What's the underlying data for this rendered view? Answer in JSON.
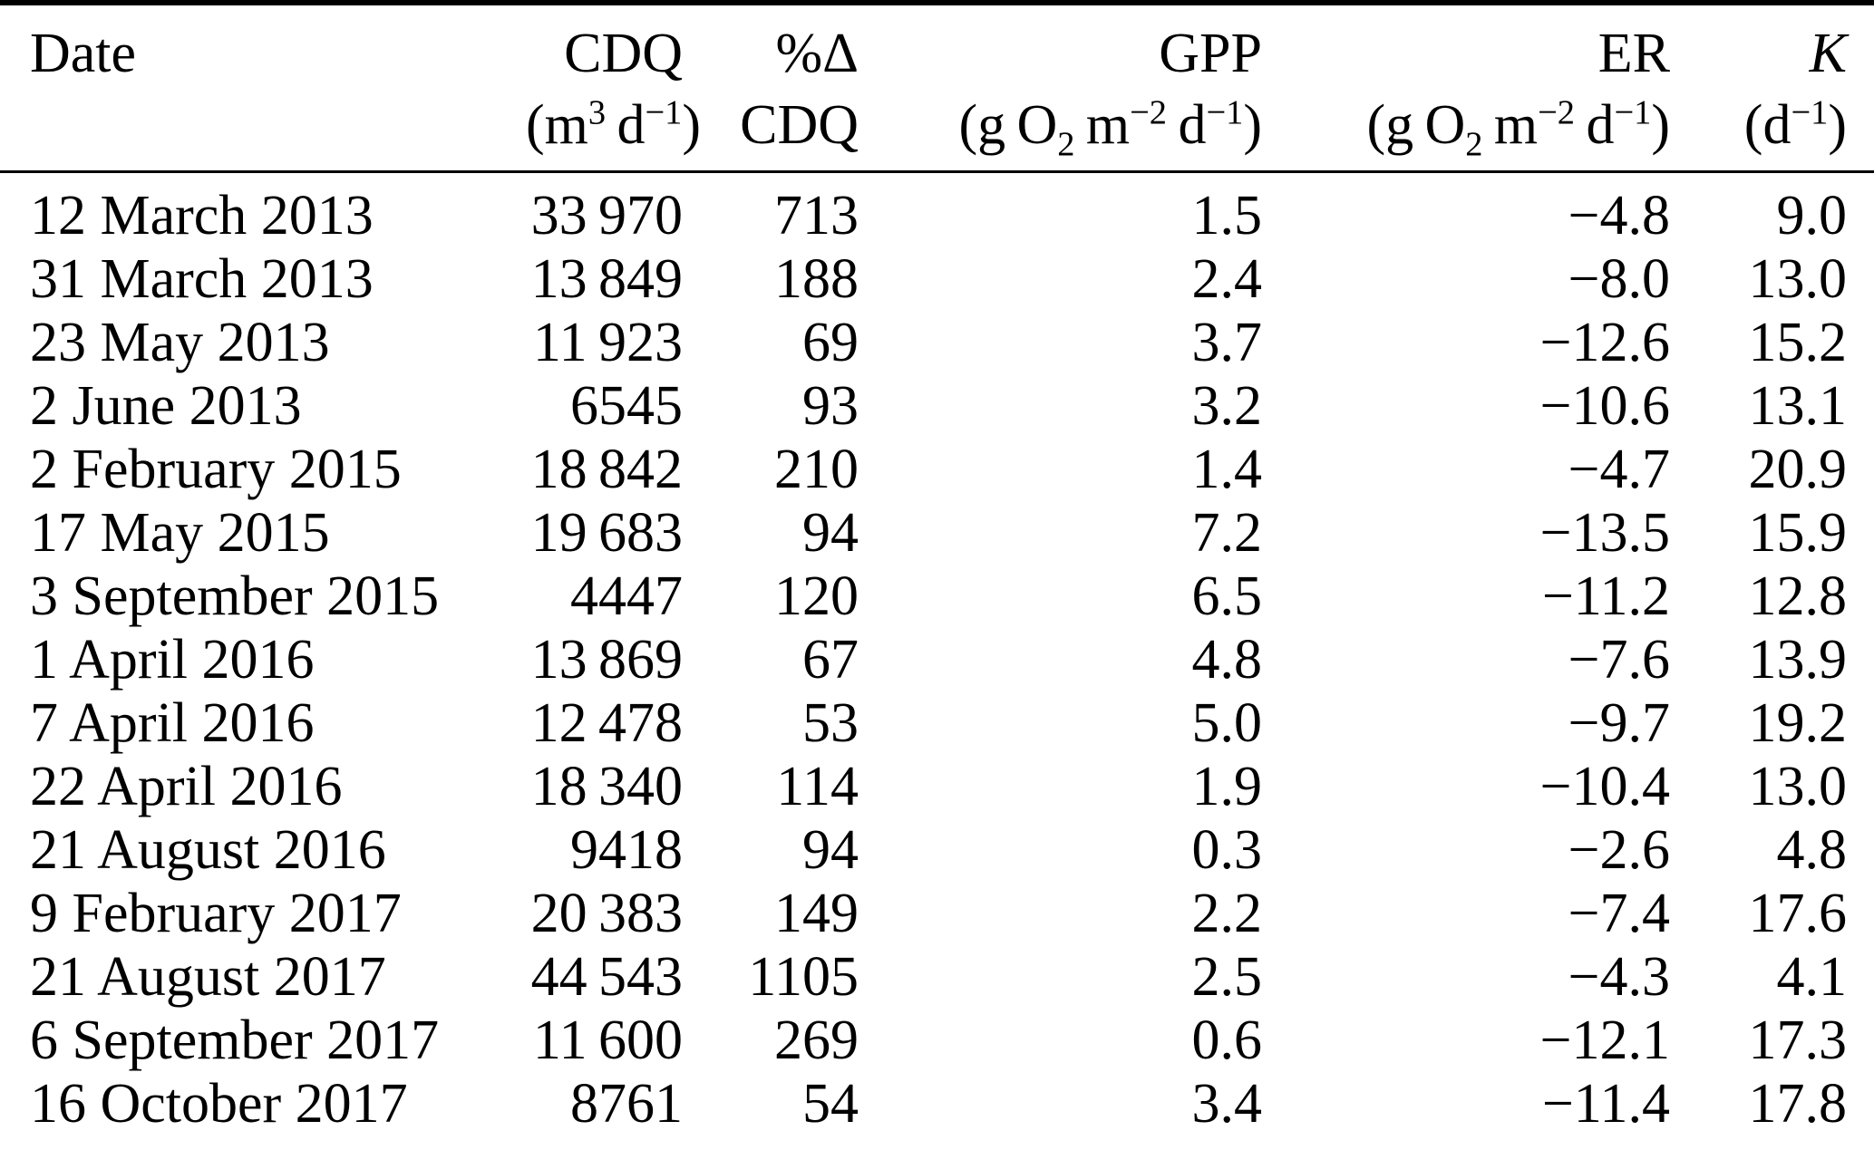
{
  "table": {
    "columns": [
      {
        "key": "date",
        "label": "Date",
        "unit_html": ""
      },
      {
        "key": "cdq",
        "label": "CDQ",
        "unit_html": "(m<sup>3</sup> d<sup>−1</sup>)"
      },
      {
        "key": "pct-delta-cdq",
        "label": "%Δ",
        "unit_html": "CDQ"
      },
      {
        "key": "gpp",
        "label": "GPP",
        "unit_html": "(g O<sub>2</sub> m<sup>−2</sup> d<sup>−1</sup>)"
      },
      {
        "key": "er",
        "label": "ER",
        "unit_html": "(g O<sub>2</sub> m<sup>−2</sup> d<sup>−1</sup>)"
      },
      {
        "key": "k",
        "label": "K",
        "unit_html": "(d<sup>−1</sup>)"
      }
    ],
    "rows": [
      [
        "12 March 2013",
        "33 970",
        "713",
        "1.5",
        "−4.8",
        "9.0"
      ],
      [
        "31 March 2013",
        "13 849",
        "188",
        "2.4",
        "−8.0",
        "13.0"
      ],
      [
        "23 May 2013",
        "11 923",
        "69",
        "3.7",
        "−12.6",
        "15.2"
      ],
      [
        "2 June 2013",
        "6545",
        "93",
        "3.2",
        "−10.6",
        "13.1"
      ],
      [
        "2 February 2015",
        "18 842",
        "210",
        "1.4",
        "−4.7",
        "20.9"
      ],
      [
        "17 May 2015",
        "19 683",
        "94",
        "7.2",
        "−13.5",
        "15.9"
      ],
      [
        "3 September 2015",
        "4447",
        "120",
        "6.5",
        "−11.2",
        "12.8"
      ],
      [
        "1 April 2016",
        "13 869",
        "67",
        "4.8",
        "−7.6",
        "13.9"
      ],
      [
        "7 April 2016",
        "12 478",
        "53",
        "5.0",
        "−9.7",
        "19.2"
      ],
      [
        "22 April 2016",
        "18 340",
        "114",
        "1.9",
        "−10.4",
        "13.0"
      ],
      [
        "21 August 2016",
        "9418",
        "94",
        "0.3",
        "−2.6",
        "4.8"
      ],
      [
        "9 February 2017",
        "20 383",
        "149",
        "2.2",
        "−7.4",
        "17.6"
      ],
      [
        "21 August 2017",
        "44 543",
        "1105",
        "2.5",
        "−4.3",
        "4.1"
      ],
      [
        "6 September 2017",
        "11 600",
        "269",
        "0.6",
        "−12.1",
        "17.3"
      ],
      [
        "16 October 2017",
        "8761",
        "54",
        "3.4",
        "−11.4",
        "17.8"
      ]
    ]
  },
  "chart_data": {
    "type": "table",
    "columns": [
      "Date",
      "CDQ (m3 d-1)",
      "%Δ CDQ",
      "GPP (g O2 m-2 d-1)",
      "ER (g O2 m-2 d-1)",
      "K (d-1)"
    ],
    "rows": [
      [
        "12 March 2013",
        33970,
        713,
        1.5,
        -4.8,
        9.0
      ],
      [
        "31 March 2013",
        13849,
        188,
        2.4,
        -8.0,
        13.0
      ],
      [
        "23 May 2013",
        11923,
        69,
        3.7,
        -12.6,
        15.2
      ],
      [
        "2 June 2013",
        6545,
        93,
        3.2,
        -10.6,
        13.1
      ],
      [
        "2 February 2015",
        18842,
        210,
        1.4,
        -4.7,
        20.9
      ],
      [
        "17 May 2015",
        19683,
        94,
        7.2,
        -13.5,
        15.9
      ],
      [
        "3 September 2015",
        4447,
        120,
        6.5,
        -11.2,
        12.8
      ],
      [
        "1 April 2016",
        13869,
        67,
        4.8,
        -7.6,
        13.9
      ],
      [
        "7 April 2016",
        12478,
        53,
        5.0,
        -9.7,
        19.2
      ],
      [
        "22 April 2016",
        18340,
        114,
        1.9,
        -10.4,
        13.0
      ],
      [
        "21 August 2016",
        9418,
        94,
        0.3,
        -2.6,
        4.8
      ],
      [
        "9 February 2017",
        20383,
        149,
        2.2,
        -7.4,
        17.6
      ],
      [
        "21 August 2017",
        44543,
        1105,
        2.5,
        -4.3,
        4.1
      ],
      [
        "6 September 2017",
        11600,
        269,
        0.6,
        -12.1,
        17.3
      ],
      [
        "16 October 2017",
        8761,
        54,
        3.4,
        -11.4,
        17.8
      ]
    ]
  }
}
